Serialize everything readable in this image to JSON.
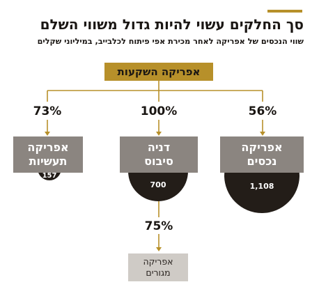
{
  "header": {
    "title": "סך החלקים עשוי להיות גדול משווי השלם",
    "subtitle": "שווי הנכסים של אפריקה לאחר מכירת אפי פיתוח לכלבייב, במיליוני שקלים"
  },
  "colors": {
    "accent": "#b7902a",
    "dark": "#231d18",
    "box_gray": "#8b8580",
    "light_gray": "#cfcbc6"
  },
  "diagram": {
    "root": {
      "label": "אפריקה השקעות"
    },
    "children": [
      {
        "id": "right",
        "percent": "56%",
        "label_line1": "אפריקה",
        "label_line2": "נכסים",
        "value": "1,108"
      },
      {
        "id": "middle",
        "percent": "100%",
        "label_line1": "דניה",
        "label_line2": "סיבוס",
        "value": "700"
      },
      {
        "id": "left",
        "percent": "73%",
        "label_line1": "אפריקה",
        "label_line2": "תעשיות",
        "value": "157"
      }
    ],
    "sub_child": {
      "percent": "75%",
      "label_line1": "אפריקה",
      "label_line2": "מגורים"
    }
  }
}
